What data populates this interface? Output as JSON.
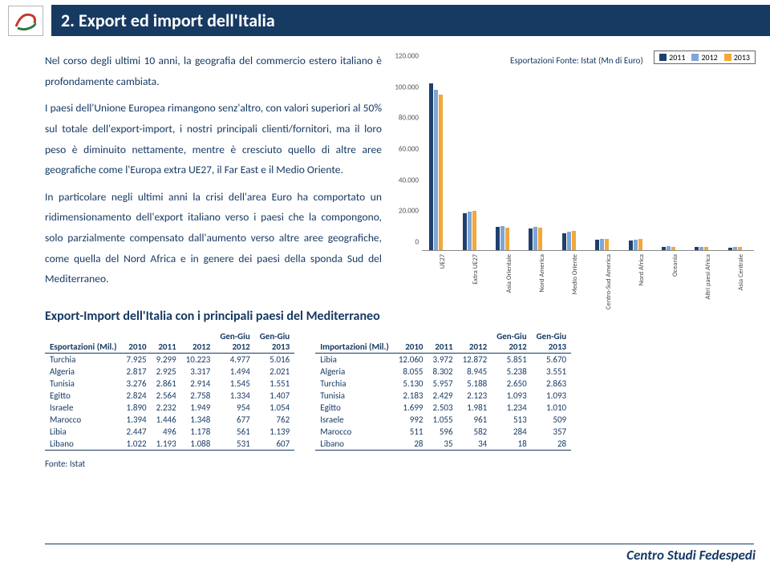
{
  "title": "2.   Export ed import dell'Italia",
  "paragraphs": [
    "Nel corso degli ultimi 10 anni, la geografia del commercio estero italiano è profondamente cambiata.",
    "I paesi dell'Unione Europea rimangono senz'altro, con valori superiori al 50% sul totale dell'export-import, i nostri principali clienti/fornitori, ma il loro peso è diminuito nettamente, mentre è cresciuto quello di altre aree geografiche come l'Europa extra UE27, il Far East e il Medio Oriente.",
    "In particolare negli ultimi anni la crisi dell'area Euro ha comportato un ridimensionamento dell'export italiano verso i paesi che la compongono, solo parzialmente compensato dall'aumento verso altre aree geografiche, come quella del Nord Africa e in genere dei paesi della sponda Sud del Mediterraneo."
  ],
  "chart": {
    "source_label": "Esportazioni Fonte: Istat (Mn di Euro)",
    "legend": [
      "2011",
      "2012",
      "2013"
    ],
    "series_colors": [
      "#1f3f6e",
      "#7ea6d6",
      "#f2a83b"
    ],
    "y_ticks": [
      "0",
      "20.000",
      "40.000",
      "60.000",
      "80.000",
      "100.000",
      "120.000"
    ],
    "y_max": 120000,
    "categories": [
      "UE27",
      "Extra UE27",
      "Asia Orientale",
      "Nord America",
      "Medio Oriente",
      "Centro-Sud America",
      "Nord Africa",
      "Oceania",
      "Altri paesi Africa",
      "Asia Centrale"
    ],
    "values": {
      "2011": [
        108000,
        24000,
        15000,
        14000,
        11000,
        7000,
        6000,
        2200,
        2000,
        1800
      ],
      "2012": [
        104000,
        25000,
        15500,
        15000,
        12000,
        7500,
        7000,
        2400,
        2200,
        1900
      ],
      "2013": [
        101000,
        25500,
        14800,
        14500,
        12500,
        7300,
        7200,
        2300,
        2300,
        1850
      ]
    }
  },
  "tables_title": "Export-Import dell'Italia con i principali paesi del Mediterraneo",
  "export_table": {
    "header": [
      "Esportazioni (Mil.)",
      "2010",
      "2011",
      "2012",
      "Gen-Giu 2012",
      "Gen-Giu 2013"
    ],
    "rows": [
      [
        "Turchia",
        "7.925",
        "9.299",
        "10.223",
        "4.977",
        "5.016"
      ],
      [
        "Algeria",
        "2.817",
        "2.925",
        "3.317",
        "1.494",
        "2.021"
      ],
      [
        "Tunisia",
        "3.276",
        "2.861",
        "2.914",
        "1.545",
        "1.551"
      ],
      [
        "Egitto",
        "2.824",
        "2.564",
        "2.758",
        "1.334",
        "1.407"
      ],
      [
        "Israele",
        "1.890",
        "2.232",
        "1.949",
        "954",
        "1.054"
      ],
      [
        "Marocco",
        "1.394",
        "1.446",
        "1.348",
        "677",
        "762"
      ],
      [
        "Libia",
        "2.447",
        "496",
        "1.178",
        "561",
        "1.139"
      ],
      [
        "Libano",
        "1.022",
        "1.193",
        "1.088",
        "531",
        "607"
      ]
    ]
  },
  "import_table": {
    "header": [
      "Importazioni (Mil.)",
      "2010",
      "2011",
      "2012",
      "Gen-Giu 2012",
      "Gen-Giu 2013"
    ],
    "rows": [
      [
        "Libia",
        "12.060",
        "3.972",
        "12.872",
        "5.851",
        "5.670"
      ],
      [
        "Algeria",
        "8.055",
        "8.302",
        "8.945",
        "5.238",
        "3.551"
      ],
      [
        "Turchia",
        "5.130",
        "5.957",
        "5.188",
        "2.650",
        "2.863"
      ],
      [
        "Tunisia",
        "2.183",
        "2.429",
        "2.123",
        "1.093",
        "1.093"
      ],
      [
        "Egitto",
        "1.699",
        "2.503",
        "1.981",
        "1.234",
        "1.010"
      ],
      [
        "Israele",
        "992",
        "1.055",
        "961",
        "513",
        "509"
      ],
      [
        "Marocco",
        "511",
        "596",
        "582",
        "284",
        "357"
      ],
      [
        "Libano",
        "28",
        "35",
        "34",
        "18",
        "28"
      ]
    ]
  },
  "fonte_label": "Fonte: Istat",
  "footer": "Centro Studi Fedespedi"
}
